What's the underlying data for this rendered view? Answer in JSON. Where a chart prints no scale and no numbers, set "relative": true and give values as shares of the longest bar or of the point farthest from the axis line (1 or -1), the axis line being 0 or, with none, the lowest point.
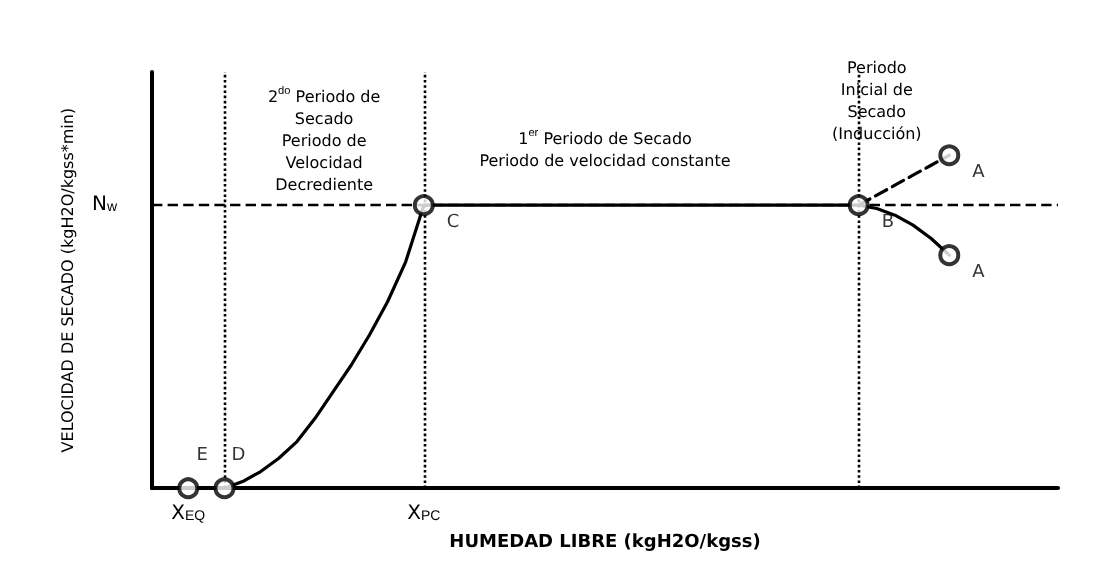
{
  "chart_data": {
    "type": "line",
    "relative": true,
    "xlabel": "HUMEDAD LIBRE (kgH2O/kgss)",
    "ylabel": "VELOCIDAD DE SECADO (kgH2O/kgss*min)",
    "categories": [
      null,
      null,
      "X$_{EQ}$",
      null,
      null,
      null,
      null,
      null,
      null,
      null,
      null,
      null,
      null,
      null,
      null,
      "X$_{PC}$",
      null,
      null,
      null,
      null,
      null,
      null,
      null,
      null,
      null,
      null,
      null,
      null,
      null,
      null,
      null,
      null,
      null,
      null,
      null,
      null,
      null,
      null,
      null,
      null,
      null,
      null,
      null,
      null,
      null,
      null,
      null,
      null,
      null,
      null,
      null
    ],
    "series": [
      {
        "color": "#000000",
        "marker": "none",
        "line_style": "solid",
        "values": [
          null,
          null,
          0,
          0,
          0,
          0.02,
          0.05,
          0.09,
          0.14,
          0.21,
          0.29,
          0.37,
          0.46,
          0.56,
          0.68,
          0.85,
          0.85,
          0.85,
          0.85,
          0.85,
          0.85,
          0.85,
          0.85,
          0.85,
          0.85,
          0.85,
          0.85,
          0.85,
          0.85,
          0.85,
          0.85,
          0.85,
          0.85,
          0.85,
          0.85,
          0.85,
          0.85,
          0.85,
          0.85,
          0.85,
          0.84,
          0.82,
          0.79,
          0.75,
          0.7,
          null,
          null,
          null,
          null,
          null,
          null
        ]
      },
      {
        "color": "#000000",
        "marker": "none",
        "line_style": "dashed",
        "values": [
          null,
          null,
          null,
          null,
          null,
          null,
          null,
          null,
          null,
          null,
          null,
          null,
          null,
          null,
          null,
          null,
          null,
          null,
          null,
          null,
          null,
          null,
          null,
          null,
          null,
          null,
          null,
          null,
          null,
          null,
          null,
          null,
          null,
          null,
          null,
          null,
          null,
          null,
          null,
          0.85,
          0.88,
          0.91,
          0.94,
          0.97,
          1,
          null,
          null,
          null,
          null,
          null,
          null
        ]
      },
      {
        "type": "scatter",
        "color": "#000000",
        "marker": "circle",
        "values": [
          null,
          null,
          0,
          null,
          0,
          null,
          null,
          null,
          null,
          null,
          null,
          null,
          null,
          null,
          null,
          0.85,
          null,
          null,
          null,
          null,
          null,
          null,
          null,
          null,
          null,
          null,
          null,
          null,
          null,
          null,
          null,
          null,
          null,
          null,
          null,
          null,
          null,
          null,
          null,
          0.85,
          null,
          null,
          null,
          null,
          1,
          null,
          null,
          null,
          null,
          null,
          null
        ]
      },
      {
        "type": "scatter",
        "color": "#000000",
        "marker": "circle",
        "values": [
          null,
          null,
          null,
          null,
          null,
          null,
          null,
          null,
          null,
          null,
          null,
          null,
          null,
          null,
          null,
          null,
          null,
          null,
          null,
          null,
          null,
          null,
          null,
          null,
          null,
          null,
          null,
          null,
          null,
          null,
          null,
          null,
          null,
          null,
          null,
          null,
          null,
          null,
          null,
          null,
          null,
          null,
          null,
          null,
          0.7,
          null,
          null,
          null,
          null,
          null,
          null
        ]
      }
    ],
    "ref_lines": [
      {
        "axis": "y",
        "value": 0.85,
        "label": "N$_{w}$",
        "line_style": "dashed"
      }
    ],
    "annotations": [
      "E",
      "D",
      "C",
      "B",
      "A",
      "A",
      "2$^{do}$ Periodo de\nSecado\nPeriodo de\nVelocidad\nDecrediente",
      "1$^{er}$ Periodo de Secado\nPeriodo de velocidad constante",
      "Periodo\nInicial de\nSecado\n(Inducción)"
    ]
  }
}
